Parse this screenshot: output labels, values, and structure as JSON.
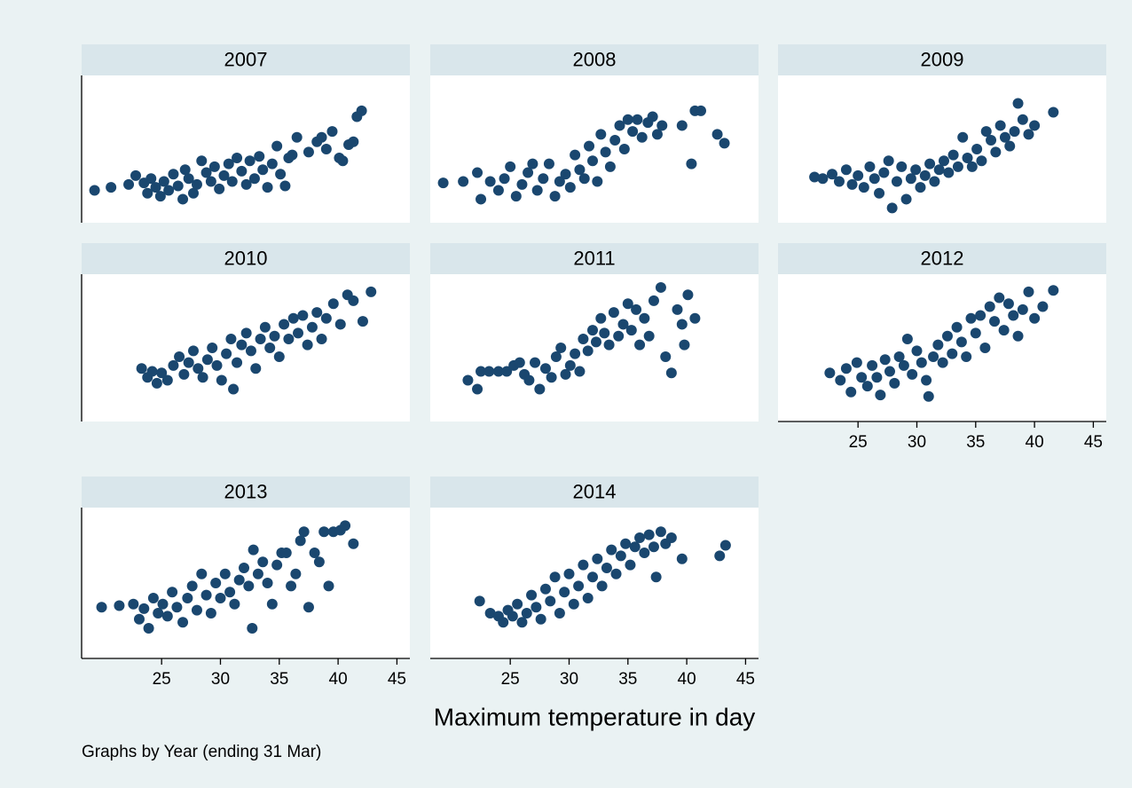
{
  "chart_data": [
    {
      "type": "scatter",
      "title": "2007",
      "color": "#1a476f",
      "xlim": [
        18.2,
        46.1
      ],
      "ylim": [
        0,
        100
      ],
      "x": [
        19.3,
        20.7,
        22.2,
        22.8,
        23.5,
        23.8,
        24.1,
        24.5,
        24.9,
        25.2,
        25.6,
        26,
        26.4,
        26.8,
        27,
        27.3,
        27.7,
        28,
        28.4,
        28.8,
        29.2,
        29.5,
        29.9,
        30.3,
        30.7,
        31,
        31.4,
        31.8,
        32.2,
        32.5,
        32.9,
        33.3,
        33.6,
        34,
        34.4,
        34.8,
        35.1,
        35.5,
        35.8,
        36.1,
        36.5,
        37.5,
        38.2,
        38.6,
        39,
        39.5,
        40.1,
        40.4,
        40.9,
        41.3,
        41.6,
        42
      ],
      "y": [
        22,
        24,
        26,
        32,
        27,
        20,
        30,
        24,
        18,
        28,
        22,
        33,
        25,
        16,
        36,
        30,
        20,
        26,
        42,
        34,
        28,
        38,
        23,
        32,
        40,
        28,
        44,
        35,
        26,
        42,
        30,
        45,
        36,
        24,
        40,
        52,
        33,
        25,
        44,
        46,
        58,
        48,
        55,
        58,
        50,
        62,
        44,
        42,
        53,
        55,
        72,
        76
      ]
    },
    {
      "type": "scatter",
      "title": "2008",
      "color": "#1a476f",
      "xlim": [
        18.2,
        46.1
      ],
      "ylim": [
        0,
        100
      ],
      "x": [
        19.3,
        21,
        22.2,
        22.5,
        23.3,
        24,
        24.5,
        25,
        25.5,
        26,
        26.5,
        26.9,
        27.3,
        27.8,
        28.3,
        28.8,
        29.2,
        29.7,
        30.1,
        30.5,
        30.9,
        31.3,
        31.7,
        32,
        32.4,
        32.7,
        33.1,
        33.5,
        33.9,
        34.3,
        34.7,
        35,
        35.4,
        35.8,
        36.2,
        36.7,
        37.1,
        37.5,
        37.9,
        39.6,
        40.4,
        40.7,
        41.2,
        42.6,
        43.2
      ],
      "y": [
        27,
        28,
        34,
        16,
        28,
        22,
        30,
        38,
        18,
        26,
        34,
        40,
        22,
        30,
        40,
        18,
        28,
        33,
        24,
        46,
        36,
        30,
        52,
        42,
        28,
        60,
        48,
        38,
        56,
        66,
        50,
        70,
        62,
        70,
        58,
        68,
        72,
        60,
        66,
        66,
        40,
        76,
        76,
        60,
        54
      ]
    },
    {
      "type": "scatter",
      "title": "2009",
      "color": "#1a476f",
      "xlim": [
        18.2,
        46.1
      ],
      "ylim": [
        0,
        100
      ],
      "x": [
        21.3,
        22,
        22.8,
        23.4,
        24,
        24.5,
        25,
        25.5,
        26,
        26.4,
        26.8,
        27.2,
        27.6,
        27.9,
        28.3,
        28.7,
        29.1,
        29.5,
        29.9,
        30.3,
        30.7,
        31.1,
        31.5,
        31.9,
        32.3,
        32.7,
        33.1,
        33.5,
        33.9,
        34.3,
        34.7,
        35.1,
        35.5,
        35.9,
        36.3,
        36.7,
        37.1,
        37.5,
        37.9,
        38.3,
        38.6,
        39,
        39.5,
        40,
        41.6
      ],
      "y": [
        31,
        30,
        33,
        28,
        36,
        26,
        32,
        24,
        38,
        30,
        20,
        34,
        42,
        10,
        28,
        38,
        16,
        30,
        36,
        24,
        32,
        40,
        28,
        36,
        42,
        34,
        46,
        38,
        58,
        44,
        38,
        50,
        42,
        62,
        56,
        48,
        66,
        58,
        52,
        62,
        81,
        70,
        60,
        66,
        75
      ]
    },
    {
      "type": "scatter",
      "title": "2010",
      "color": "#1a476f",
      "xlim": [
        18.2,
        46.1
      ],
      "ylim": [
        0,
        100
      ],
      "x": [
        23.3,
        23.8,
        24.2,
        24.6,
        25,
        25.5,
        26,
        26.5,
        26.9,
        27.3,
        27.7,
        28.1,
        28.5,
        28.9,
        29.3,
        29.7,
        30.1,
        30.5,
        30.9,
        31.1,
        31.4,
        31.8,
        32.2,
        32.6,
        33,
        33.4,
        33.8,
        34.2,
        34.6,
        35,
        35.4,
        35.8,
        36.2,
        36.6,
        37,
        37.4,
        37.8,
        38.2,
        38.6,
        39,
        39.6,
        40.2,
        40.8,
        41.3,
        42.1,
        42.8
      ],
      "y": [
        36,
        30,
        34,
        26,
        33,
        28,
        38,
        44,
        32,
        40,
        48,
        36,
        30,
        42,
        50,
        38,
        28,
        46,
        56,
        22,
        40,
        52,
        60,
        48,
        36,
        56,
        64,
        50,
        58,
        44,
        66,
        56,
        70,
        60,
        72,
        52,
        64,
        74,
        56,
        70,
        80,
        66,
        86,
        82,
        68,
        88
      ]
    },
    {
      "type": "scatter",
      "title": "2011",
      "color": "#1a476f",
      "xlim": [
        18.2,
        46.1
      ],
      "ylim": [
        0,
        100
      ],
      "x": [
        21.4,
        22.2,
        22.5,
        23.2,
        24,
        24.7,
        25.3,
        25.8,
        26.2,
        26.6,
        27.1,
        27.5,
        28,
        28.5,
        28.9,
        29.3,
        29.7,
        30.1,
        30.5,
        30.9,
        31.2,
        31.6,
        32,
        32.3,
        32.7,
        33,
        33.4,
        33.8,
        34.2,
        34.6,
        35,
        35.3,
        35.7,
        36,
        36.4,
        36.8,
        37.2,
        37.8,
        38.2,
        38.7,
        39.2,
        39.6,
        39.8,
        40.1,
        40.7
      ],
      "y": [
        28,
        22,
        34,
        34,
        34,
        34,
        38,
        40,
        32,
        28,
        40,
        22,
        36,
        30,
        44,
        50,
        32,
        38,
        46,
        34,
        56,
        48,
        62,
        54,
        70,
        60,
        52,
        74,
        58,
        66,
        80,
        62,
        76,
        52,
        70,
        58,
        82,
        91,
        44,
        33,
        76,
        66,
        52,
        86,
        70
      ]
    },
    {
      "type": "scatter",
      "title": "2012",
      "color": "#1a476f",
      "xlim": [
        18.2,
        46.1
      ],
      "ylim": [
        0,
        100
      ],
      "xticks": [
        25,
        30,
        35,
        40,
        45
      ],
      "x": [
        22.6,
        23.5,
        24,
        24.4,
        24.9,
        25.3,
        25.8,
        26.2,
        26.6,
        26.9,
        27.3,
        27.7,
        28.1,
        28.5,
        28.9,
        29.2,
        29.6,
        30,
        30.4,
        30.8,
        31,
        31.4,
        31.8,
        32.2,
        32.6,
        33,
        33.4,
        33.8,
        34.2,
        34.6,
        35,
        35.4,
        35.8,
        36.2,
        36.6,
        37,
        37.4,
        37.8,
        38.2,
        38.6,
        39,
        39.5,
        40,
        40.7,
        41.6
      ],
      "y": [
        33,
        28,
        36,
        20,
        40,
        30,
        24,
        38,
        30,
        18,
        42,
        34,
        26,
        44,
        38,
        56,
        32,
        48,
        40,
        28,
        17,
        44,
        52,
        40,
        58,
        46,
        64,
        54,
        44,
        70,
        60,
        72,
        50,
        78,
        68,
        84,
        62,
        80,
        72,
        58,
        76,
        88,
        70,
        78,
        89
      ]
    },
    {
      "type": "scatter",
      "title": "2013",
      "color": "#1a476f",
      "xlim": [
        18.2,
        46.1
      ],
      "ylim": [
        0,
        100
      ],
      "xticks": [
        25,
        30,
        35,
        40,
        45
      ],
      "x": [
        19.9,
        21.4,
        22.6,
        23.1,
        23.5,
        23.9,
        24.3,
        24.7,
        25.1,
        25.5,
        25.9,
        26.3,
        26.8,
        27.2,
        27.6,
        28,
        28.4,
        28.8,
        29.2,
        29.6,
        30,
        30.4,
        30.8,
        31.2,
        31.6,
        32,
        32.4,
        32.7,
        32.8,
        33.2,
        33.6,
        34,
        34.4,
        34.8,
        35.2,
        35.6,
        36,
        36.4,
        36.8,
        37.1,
        37.5,
        38,
        38.4,
        38.8,
        39.2,
        39.6,
        40.2,
        40.6,
        41.3
      ],
      "y": [
        34,
        35,
        36,
        26,
        33,
        20,
        40,
        30,
        36,
        28,
        44,
        34,
        24,
        40,
        48,
        32,
        56,
        42,
        30,
        50,
        40,
        56,
        44,
        36,
        52,
        60,
        48,
        20,
        72,
        56,
        64,
        50,
        36,
        62,
        70,
        70,
        48,
        56,
        78,
        84,
        34,
        70,
        64,
        84,
        48,
        84,
        85,
        88,
        76
      ]
    },
    {
      "type": "scatter",
      "title": "2014",
      "color": "#1a476f",
      "xlim": [
        18.2,
        46.1
      ],
      "ylim": [
        0,
        100
      ],
      "xticks": [
        25,
        30,
        35,
        40,
        45
      ],
      "x": [
        22.4,
        23.3,
        24,
        24.4,
        24.8,
        25.2,
        25.6,
        26,
        26.4,
        26.8,
        27.2,
        27.6,
        28,
        28.4,
        28.8,
        29.2,
        29.6,
        30,
        30.4,
        30.8,
        31.2,
        31.6,
        32,
        32.4,
        32.8,
        33.2,
        33.6,
        34,
        34.4,
        34.8,
        35.2,
        35.6,
        36,
        36.4,
        36.8,
        37.2,
        37.4,
        37.8,
        38.2,
        38.7,
        39.6,
        42.8,
        43.3
      ],
      "y": [
        38,
        30,
        28,
        24,
        32,
        28,
        36,
        24,
        30,
        42,
        34,
        26,
        46,
        38,
        54,
        30,
        44,
        56,
        36,
        48,
        62,
        40,
        54,
        66,
        48,
        60,
        72,
        56,
        68,
        76,
        62,
        74,
        80,
        70,
        82,
        74,
        54,
        84,
        76,
        80,
        66,
        68,
        75
      ]
    }
  ],
  "xlabel": "Maximum temperature in day",
  "note": "Graphs by Year (ending 31 Mar)"
}
